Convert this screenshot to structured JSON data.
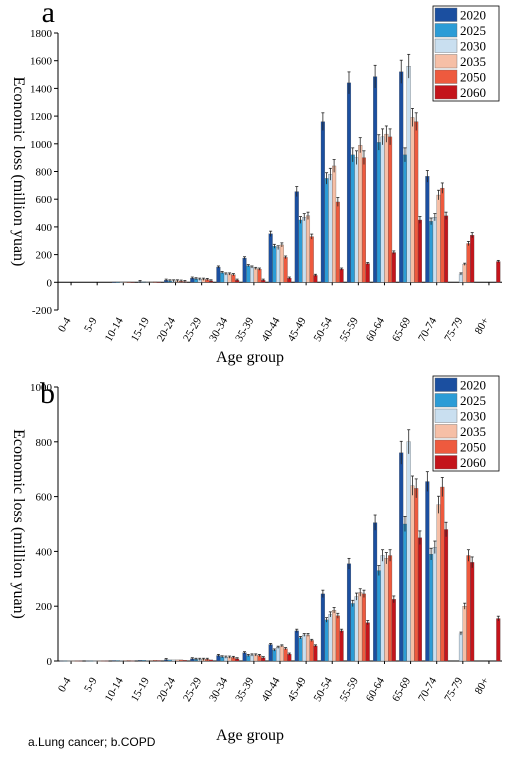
{
  "caption": "a.Lung cancer; b.COPD",
  "legend_years": [
    "2020",
    "2025",
    "2030",
    "2035",
    "2050",
    "2060"
  ],
  "colors": [
    "#1b4fa0",
    "#2c9cd6",
    "#c9dff0",
    "#f6bfa6",
    "#ee5a3e",
    "#c4141b"
  ],
  "chart_data": [
    {
      "type": "bar",
      "panel": "a",
      "xlabel": "Age group",
      "ylabel": "Economic loss (million yuan)",
      "ylim": [
        -200,
        1800
      ],
      "yticks": [
        -200,
        0,
        200,
        400,
        600,
        800,
        1000,
        1200,
        1400,
        1600,
        1800
      ],
      "categories": [
        "0-4",
        "5-9",
        "10-14",
        "15-19",
        "20-24",
        "25-29",
        "30-34",
        "35-39",
        "40-44",
        "45-49",
        "50-54",
        "55-59",
        "60-64",
        "65-69",
        "70-74",
        "75-79",
        "80+"
      ],
      "legend_position": "top-right",
      "series": [
        {
          "name": "2020",
          "values": [
            0,
            0,
            2,
            5,
            15,
            30,
            110,
            175,
            350,
            655,
            1160,
            1440,
            1485,
            1520,
            765,
            0,
            0
          ]
        },
        {
          "name": "2025",
          "values": [
            0,
            0,
            2,
            4,
            10,
            25,
            70,
            120,
            260,
            450,
            750,
            920,
            1010,
            920,
            440,
            0,
            0
          ]
        },
        {
          "name": "2030",
          "values": [
            0,
            0,
            2,
            4,
            10,
            22,
            60,
            110,
            250,
            470,
            780,
            900,
            1050,
            1560,
            470,
            60,
            0
          ]
        },
        {
          "name": "2035",
          "values": [
            0,
            0,
            2,
            4,
            10,
            22,
            60,
            100,
            270,
            480,
            840,
            990,
            1070,
            1190,
            630,
            130,
            0
          ]
        },
        {
          "name": "2050",
          "values": [
            0,
            0,
            2,
            3,
            8,
            20,
            55,
            95,
            180,
            330,
            580,
            900,
            1050,
            1160,
            680,
            280,
            0
          ]
        },
        {
          "name": "2060",
          "values": [
            0,
            0,
            1,
            2,
            5,
            10,
            15,
            15,
            30,
            50,
            95,
            135,
            215,
            450,
            480,
            340,
            150
          ]
        }
      ]
    },
    {
      "type": "bar",
      "panel": "b",
      "xlabel": "Age group",
      "ylabel": "Economic loss (million yuan)",
      "ylim": [
        0,
        1000
      ],
      "yticks": [
        0,
        200,
        400,
        600,
        800,
        1000
      ],
      "categories": [
        "0-4",
        "5-9",
        "10-14",
        "15-19",
        "20-24",
        "25-29",
        "30-34",
        "35-39",
        "40-44",
        "45-49",
        "50-54",
        "55-59",
        "60-64",
        "65-69",
        "70-74",
        "75-79",
        "80+"
      ],
      "legend_position": "top-right",
      "series": [
        {
          "name": "2020",
          "values": [
            1,
            1,
            2,
            3,
            5,
            8,
            20,
            30,
            60,
            110,
            245,
            355,
            505,
            760,
            655,
            0,
            0
          ]
        },
        {
          "name": "2025",
          "values": [
            1,
            1,
            2,
            3,
            4,
            6,
            15,
            20,
            40,
            85,
            150,
            210,
            330,
            500,
            390,
            0,
            0
          ]
        },
        {
          "name": "2030",
          "values": [
            1,
            1,
            2,
            3,
            4,
            6,
            14,
            22,
            50,
            95,
            170,
            235,
            385,
            800,
            415,
            100,
            0
          ]
        },
        {
          "name": "2035",
          "values": [
            1,
            1,
            2,
            3,
            4,
            6,
            14,
            22,
            55,
            95,
            185,
            250,
            375,
            640,
            570,
            200,
            0
          ]
        },
        {
          "name": "2050",
          "values": [
            1,
            1,
            2,
            3,
            4,
            6,
            13,
            20,
            45,
            75,
            165,
            245,
            385,
            630,
            635,
            385,
            0
          ]
        },
        {
          "name": "2060",
          "values": [
            1,
            1,
            1,
            2,
            3,
            4,
            8,
            12,
            25,
            55,
            110,
            140,
            225,
            450,
            480,
            360,
            155
          ]
        }
      ]
    }
  ]
}
